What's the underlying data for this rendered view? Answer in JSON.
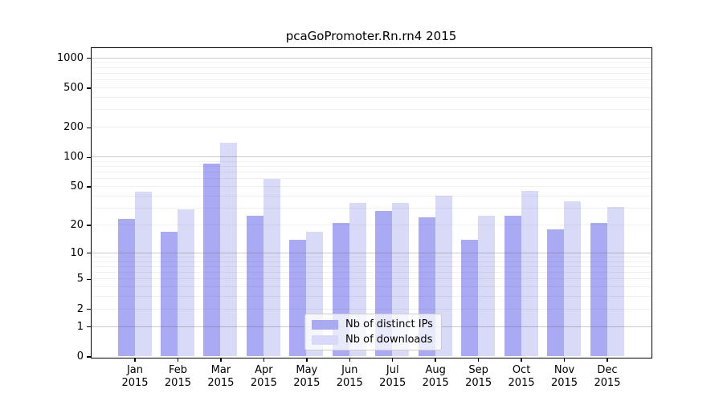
{
  "title": "pcaGoPromoter.Rn.rn4 2015",
  "chart_data": {
    "type": "bar",
    "title": "pcaGoPromoter.Rn.rn4 2015",
    "year": "2015",
    "categories": [
      "Jan",
      "Feb",
      "Mar",
      "Apr",
      "May",
      "Jun",
      "Jul",
      "Aug",
      "Sep",
      "Oct",
      "Nov",
      "Dec"
    ],
    "series": [
      {
        "name": "Nb of distinct IPs",
        "slug": "distinct-ips",
        "color": "#a9a9f4",
        "values": [
          23,
          17,
          85,
          25,
          14,
          21,
          28,
          24,
          14,
          25,
          18,
          21
        ]
      },
      {
        "name": "Nb of downloads",
        "slug": "downloads",
        "color": "#d9d9f8",
        "values": [
          44,
          29,
          140,
          60,
          17,
          34,
          34,
          40,
          25,
          45,
          35,
          31
        ]
      }
    ],
    "yscale": "log1p",
    "ylim": [
      0,
      1270
    ],
    "yticks": [
      1000,
      500,
      200,
      100,
      50,
      20,
      10,
      5,
      2,
      1,
      0
    ],
    "grid": true,
    "legend_position": "lower-center-inside"
  },
  "colors": {
    "bar_distinct_ips": "#a9a9f4",
    "bar_downloads": "#d9d9f8",
    "grid_major": "#c4c4c4",
    "grid_minor": "#ececec",
    "axis": "#000000",
    "legend_border": "#cccccc",
    "legend_background": "rgba(255,255,255,0.75)"
  }
}
